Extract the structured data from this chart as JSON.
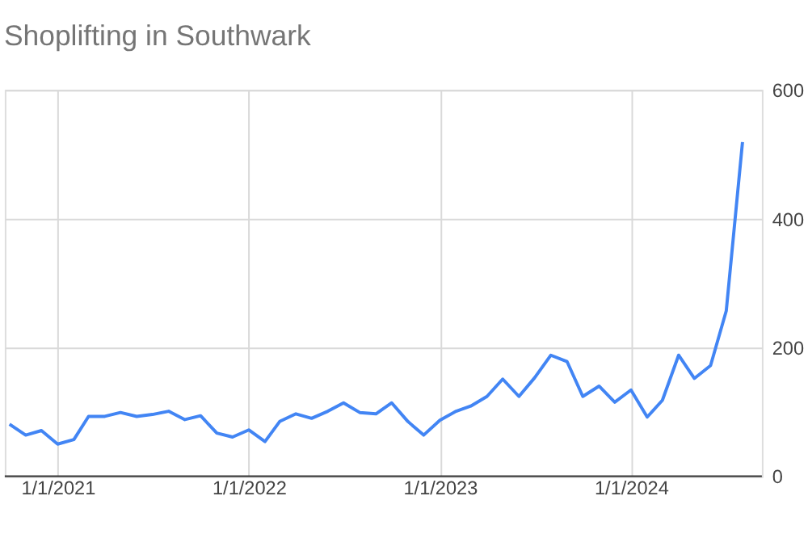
{
  "chart_data": {
    "type": "line",
    "title": "Shoplifting in Southwark",
    "x": [
      "2020-10",
      "2020-11",
      "2020-12",
      "2021-01",
      "2021-02",
      "2021-03",
      "2021-04",
      "2021-05",
      "2021-06",
      "2021-07",
      "2021-08",
      "2021-09",
      "2021-10",
      "2021-11",
      "2021-12",
      "2022-01",
      "2022-02",
      "2022-03",
      "2022-04",
      "2022-05",
      "2022-06",
      "2022-07",
      "2022-08",
      "2022-09",
      "2022-10",
      "2022-11",
      "2022-12",
      "2023-01",
      "2023-02",
      "2023-03",
      "2023-04",
      "2023-05",
      "2023-06",
      "2023-07",
      "2023-08",
      "2023-09",
      "2023-10",
      "2023-11",
      "2023-12",
      "2024-01",
      "2024-02",
      "2024-03",
      "2024-04",
      "2024-05",
      "2024-06",
      "2024-07",
      "2024-08"
    ],
    "series": [
      {
        "color": "#4285f4",
        "values": [
          81,
          64,
          71,
          50,
          57,
          93,
          93,
          99,
          93,
          96,
          101,
          88,
          94,
          67,
          61,
          72,
          54,
          85,
          97,
          90,
          101,
          114,
          99,
          97,
          114,
          85,
          64,
          87,
          101,
          109,
          124,
          151,
          124,
          153,
          188,
          178,
          124,
          140,
          115,
          134,
          92,
          118,
          188,
          152,
          172,
          257,
          519
        ]
      }
    ],
    "xlim": [
      "2020-09-22",
      "2024-09-07"
    ],
    "xticks": [
      {
        "value": "2021-01-01",
        "label": "1/1/2021"
      },
      {
        "value": "2022-01-01",
        "label": "1/1/2022"
      },
      {
        "value": "2023-01-01",
        "label": "1/1/2023"
      },
      {
        "value": "2024-01-01",
        "label": "1/1/2024"
      }
    ],
    "ylim": [
      0,
      600
    ],
    "yticks": [
      0,
      200,
      400,
      600
    ],
    "grid": true,
    "marker": "none",
    "line_style": "solid"
  }
}
